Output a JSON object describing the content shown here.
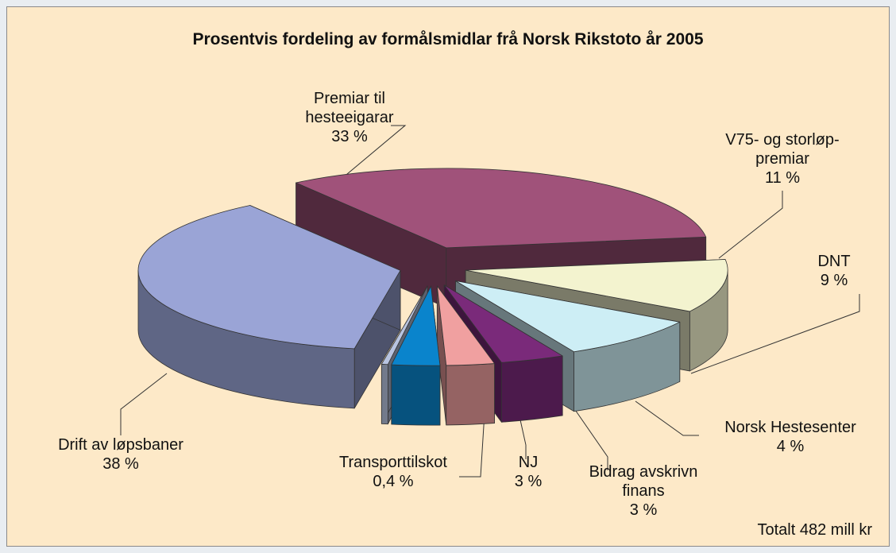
{
  "chart_data": {
    "type": "pie",
    "title": "Prosentvis fordeling av formålsmidlar frå Norsk Rikstoto år 2005",
    "categories": [
      "Premiar til hesteeigarar",
      "V75- og storløp-premiar",
      "DNT",
      "Norsk Hestesenter",
      "Bidrag avskrivn finans",
      "NJ",
      "Transporttilskot",
      "Drift av løpsbaner"
    ],
    "values": [
      33,
      11,
      9,
      4,
      3,
      3,
      0.4,
      38
    ],
    "value_labels": [
      "33 %",
      "11 %",
      "9 %",
      "4 %",
      "3 %",
      "3 %",
      "0,4 %",
      "38 %"
    ],
    "colors": [
      "#a0527a",
      "#f3f3cf",
      "#cdeef5",
      "#7a2a7a",
      "#f0a0a0",
      "#0a84cc",
      "#b8c4e0",
      "#9aa4d6"
    ],
    "annotation": "Totalt 482 mill kr"
  }
}
